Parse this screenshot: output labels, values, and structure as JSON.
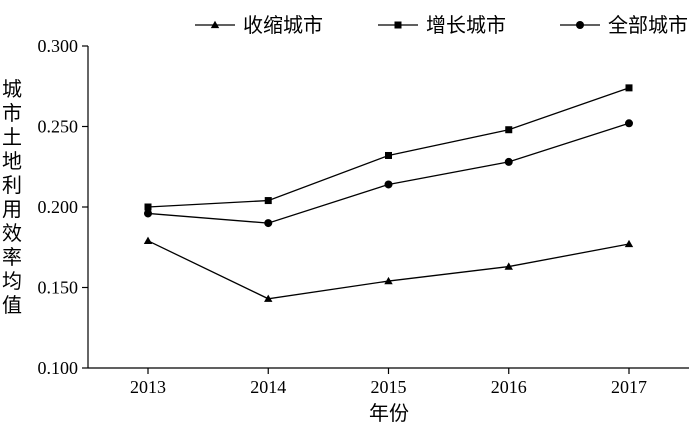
{
  "chart_data": {
    "type": "line",
    "xlabel": "年份",
    "ylabel": "城市土地利用效率均值",
    "categories": [
      "2013",
      "2014",
      "2015",
      "2016",
      "2017"
    ],
    "ylim": [
      0.1,
      0.3
    ],
    "yticks": [
      "0.100",
      "0.150",
      "0.200",
      "0.250",
      "0.300"
    ],
    "ytick_values": [
      0.1,
      0.15,
      0.2,
      0.25,
      0.3
    ],
    "grid": false,
    "legend_position": "top",
    "series": [
      {
        "name": "收缩城市",
        "marker": "triangle",
        "values": [
          0.179,
          0.143,
          0.154,
          0.163,
          0.177
        ]
      },
      {
        "name": "增长城市",
        "marker": "square",
        "values": [
          0.2,
          0.204,
          0.232,
          0.248,
          0.274
        ]
      },
      {
        "name": "全部城市",
        "marker": "circle",
        "values": [
          0.196,
          0.19,
          0.214,
          0.228,
          0.252
        ]
      }
    ]
  }
}
